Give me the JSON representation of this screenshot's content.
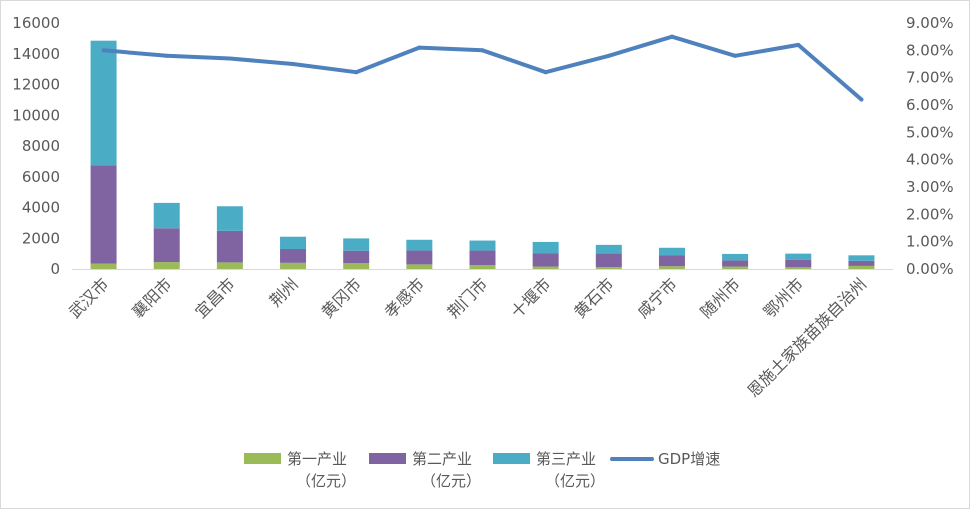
{
  "chart_data": {
    "type": "bar",
    "stacked": true,
    "categories": [
      "武汉市",
      "襄阳市",
      "宜昌市",
      "荆州",
      "黄冈市",
      "孝感市",
      "荆门市",
      "十堰市",
      "黄石市",
      "咸宁市",
      "随州市",
      "鄂州市",
      "恩施土家族苗族自治州"
    ],
    "series": [
      {
        "name": "第一产业（亿元）",
        "legend_lines": [
          "第一产业",
          "（亿元）"
        ],
        "color": "#9bbb59",
        "axis": "left",
        "values": [
          350,
          450,
          430,
          400,
          390,
          300,
          250,
          160,
          120,
          180,
          160,
          110,
          200
        ]
      },
      {
        "name": "第二产业（亿元）",
        "legend_lines": [
          "第二产业",
          "（亿元）"
        ],
        "color": "#8064a2",
        "axis": "left",
        "values": [
          6400,
          2200,
          2050,
          900,
          800,
          900,
          950,
          850,
          900,
          700,
          400,
          480,
          330
        ]
      },
      {
        "name": "第三产业（亿元）",
        "legend_lines": [
          "第三产业",
          "（亿元）"
        ],
        "color": "#4bacc6",
        "axis": "left",
        "values": [
          8100,
          1650,
          1600,
          800,
          800,
          700,
          650,
          750,
          550,
          500,
          420,
          410,
          360
        ]
      },
      {
        "name": "GDP增速",
        "legend_lines": [
          "GDP增速"
        ],
        "color": "#4f81bd",
        "type": "line",
        "axis": "right",
        "values": [
          8.0,
          7.8,
          7.7,
          7.5,
          7.2,
          8.1,
          8.0,
          7.2,
          7.8,
          8.5,
          7.8,
          8.2,
          6.2
        ]
      }
    ],
    "y_left": {
      "min": 0,
      "max": 16000,
      "step": 2000,
      "ticks": [
        "0",
        "2000",
        "4000",
        "6000",
        "8000",
        "10000",
        "12000",
        "14000",
        "16000"
      ]
    },
    "y_right": {
      "min": 0,
      "max": 9,
      "step": 1,
      "ticks": [
        "0.00%",
        "1.00%",
        "2.00%",
        "3.00%",
        "4.00%",
        "5.00%",
        "6.00%",
        "7.00%",
        "8.00%",
        "9.00%"
      ]
    },
    "legend_position": "bottom",
    "grid": false
  }
}
